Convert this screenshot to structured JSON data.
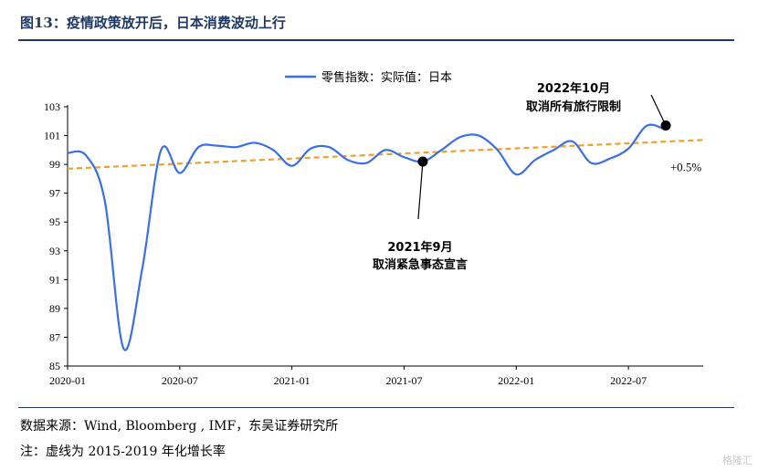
{
  "header": {
    "title": "图13：疫情政策放开后，日本消费波动上行"
  },
  "footer": {
    "source": "数据来源：Wind, Bloomberg , IMF，东吴证券研究所",
    "note": "注：虚线为 2015-2019 年化增长率",
    "watermark": "格隆汇"
  },
  "colors": {
    "series": "#3b6fe8",
    "trend": "#f0a030",
    "title": "#1f3864"
  },
  "chart_data": {
    "type": "line",
    "title": "",
    "xlabel": "",
    "ylabel": "",
    "ylim": [
      85,
      103
    ],
    "yticks": [
      85,
      87,
      89,
      91,
      93,
      95,
      97,
      99,
      101,
      103
    ],
    "xlim": [
      "2020-01",
      "2022-11"
    ],
    "xticks": [
      "2020-01",
      "2020-07",
      "2021-01",
      "2021-07",
      "2022-01",
      "2022-07"
    ],
    "grid": false,
    "legend_position": "top-center",
    "series": [
      {
        "name": "零售指数：实际值：日本",
        "style": "solid",
        "x": [
          "2020-01",
          "2020-02",
          "2020-03",
          "2020-04",
          "2020-05",
          "2020-06",
          "2020-07",
          "2020-08",
          "2020-09",
          "2020-10",
          "2020-11",
          "2020-12",
          "2021-01",
          "2021-02",
          "2021-03",
          "2021-04",
          "2021-05",
          "2021-06",
          "2021-07",
          "2021-08",
          "2021-09",
          "2021-10",
          "2021-11",
          "2021-12",
          "2022-01",
          "2022-02",
          "2022-03",
          "2022-04",
          "2022-05",
          "2022-06",
          "2022-07",
          "2022-08",
          "2022-09",
          "2022-10",
          "2022-11"
        ],
        "values": [
          99.8,
          99.6,
          96.4,
          86.2,
          91.8,
          100.0,
          98.4,
          100.2,
          100.3,
          100.2,
          100.5,
          100.0,
          98.9,
          100.1,
          100.2,
          99.3,
          99.1,
          100.0,
          99.5,
          99.2,
          100.0,
          100.9,
          101.0,
          100.0,
          98.3,
          99.3,
          100.0,
          100.6,
          99.1,
          99.4,
          100.1,
          101.7,
          101.4,
          null,
          null
        ]
      }
    ],
    "trend": {
      "style": "dashed",
      "x": [
        "2020-01",
        "2022-11"
      ],
      "values": [
        98.7,
        100.7
      ],
      "label": "+0.5%"
    },
    "annotations": [
      {
        "line1": "2021年9月",
        "line2": "取消紧急事态宣言",
        "x": "2021-08",
        "y": 99.2
      },
      {
        "line1": "2022年10月",
        "line2": "取消所有旅行限制",
        "x": "2022-09",
        "y": 101.7
      }
    ]
  }
}
